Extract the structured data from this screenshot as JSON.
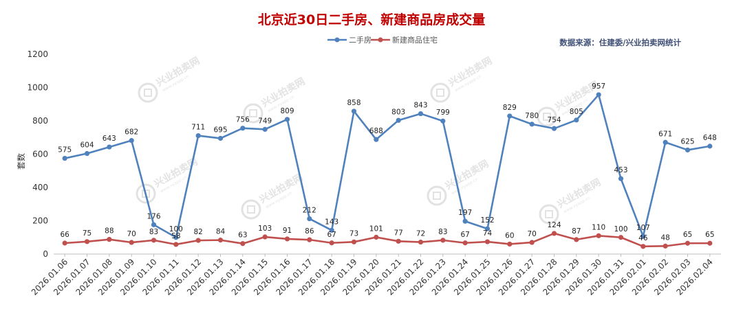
{
  "chart_data": {
    "type": "line",
    "title": "北京近30日二手房、新建商品房成交量",
    "source_note": "数据来源：住建委/兴业拍卖网统计",
    "ylabel": "套数",
    "ylim": [
      0,
      1200
    ],
    "yticks": [
      0,
      200,
      400,
      600,
      800,
      1000,
      1200
    ],
    "grid": false,
    "legend_position": "top-center",
    "categories": [
      "2026.01.06",
      "2026.01.07",
      "2026.01.08",
      "2026.01.09",
      "2026.01.10",
      "2026.01.11",
      "2026.01.12",
      "2026.01.13",
      "2026.01.14",
      "2026.01.15",
      "2026.01.16",
      "2026.01.17",
      "2026.01.18",
      "2026.01.19",
      "2026.01.20",
      "2026.01.21",
      "2026.01.22",
      "2026.01.23",
      "2026.01.24",
      "2026.01.25",
      "2026.01.26",
      "2026.01.27",
      "2026.01.28",
      "2026.01.29",
      "2026.01.30",
      "2026.01.31",
      "2026.02.01",
      "2026.02.02",
      "2026.02.03",
      "2026.02.04"
    ],
    "series": [
      {
        "name": "二手房",
        "color": "#4f81bd",
        "values": [
          575,
          604,
          643,
          682,
          176,
          100,
          711,
          695,
          756,
          749,
          809,
          212,
          143,
          858,
          688,
          803,
          843,
          799,
          197,
          152,
          829,
          780,
          754,
          805,
          957,
          453,
          107,
          671,
          625,
          648
        ]
      },
      {
        "name": "新建商品住宅",
        "color": "#c0504d",
        "values": [
          66,
          75,
          88,
          70,
          83,
          58,
          82,
          84,
          63,
          103,
          91,
          86,
          67,
          73,
          101,
          77,
          72,
          83,
          67,
          74,
          60,
          70,
          124,
          87,
          110,
          100,
          46,
          48,
          65,
          65
        ]
      }
    ]
  },
  "watermark": {
    "text": "兴业拍卖网",
    "sub": "www.xyapp.cn"
  }
}
